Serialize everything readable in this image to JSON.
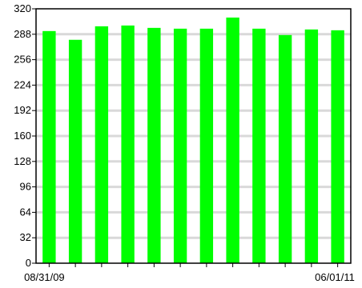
{
  "chart_data": {
    "type": "bar",
    "title": "",
    "xlabel": "",
    "ylabel": "",
    "x_tick_labels": [
      "08/31/09",
      "06/01/11"
    ],
    "x_tick_count": 12,
    "categories": [
      "1",
      "2",
      "3",
      "4",
      "5",
      "6",
      "7",
      "8",
      "9",
      "10",
      "11",
      "12"
    ],
    "values": [
      292,
      281,
      298,
      299,
      296,
      295,
      295,
      309,
      295,
      287,
      294,
      293
    ],
    "ylim": [
      0,
      320
    ],
    "yticks": [
      "0",
      "32",
      "64",
      "96",
      "128",
      "160",
      "192",
      "224",
      "256",
      "288",
      "320"
    ],
    "grid": true,
    "bar_color": "#00ff00",
    "grid_color": "#d9d9d9"
  }
}
